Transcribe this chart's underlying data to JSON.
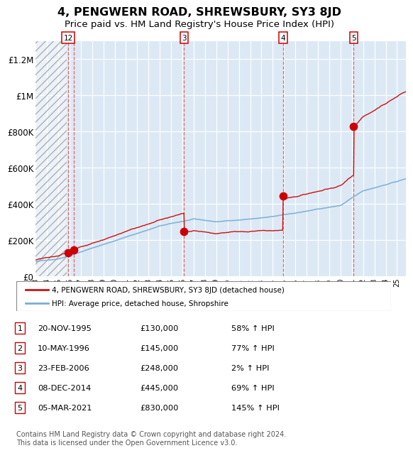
{
  "title": "4, PENGWERN ROAD, SHREWSBURY, SY3 8JD",
  "subtitle": "Price paid vs. HM Land Registry's House Price Index (HPI)",
  "title_fontsize": 11.5,
  "subtitle_fontsize": 9.5,
  "ylim": [
    0,
    1300000
  ],
  "yticks": [
    0,
    200000,
    400000,
    600000,
    800000,
    1000000,
    1200000
  ],
  "ytick_labels": [
    "£0",
    "£200K",
    "£400K",
    "£600K",
    "£800K",
    "£1M",
    "£1.2M"
  ],
  "xlim_start": 1993.0,
  "xlim_end": 2025.8,
  "xticks": [
    1993,
    1994,
    1995,
    1996,
    1997,
    1998,
    1999,
    2000,
    2001,
    2002,
    2003,
    2004,
    2005,
    2006,
    2007,
    2008,
    2009,
    2010,
    2011,
    2012,
    2013,
    2014,
    2015,
    2016,
    2017,
    2018,
    2019,
    2020,
    2021,
    2022,
    2023,
    2024,
    2025
  ],
  "background_color": "#dce9f5",
  "hatch_region_end": 1995.75,
  "grid_color": "#ffffff",
  "sale_dates_year": [
    1995.89,
    1996.36,
    2006.15,
    2014.92,
    2021.17
  ],
  "sale_prices": [
    130000,
    145000,
    248000,
    445000,
    830000
  ],
  "vline_color": "#e05050",
  "dot_color": "#cc0000",
  "dot_size": 55,
  "red_line_color": "#cc1111",
  "blue_line_color": "#7aadd4",
  "legend_red_label": "4, PENGWERN ROAD, SHREWSBURY, SY3 8JD (detached house)",
  "legend_blue_label": "HPI: Average price, detached house, Shropshire",
  "table_data": [
    {
      "num": "1",
      "date": "20-NOV-1995",
      "price": "£130,000",
      "hpi": "58% ↑ HPI"
    },
    {
      "num": "2",
      "date": "10-MAY-1996",
      "price": "£145,000",
      "hpi": "77% ↑ HPI"
    },
    {
      "num": "3",
      "date": "23-FEB-2006",
      "price": "£248,000",
      "hpi": "2% ↑ HPI"
    },
    {
      "num": "4",
      "date": "08-DEC-2014",
      "price": "£445,000",
      "hpi": "69% ↑ HPI"
    },
    {
      "num": "5",
      "date": "05-MAR-2021",
      "price": "£830,000",
      "hpi": "145% ↑ HPI"
    }
  ],
  "footer_text": "Contains HM Land Registry data © Crown copyright and database right 2024.\nThis data is licensed under the Open Government Licence v3.0.",
  "footer_fontsize": 7.0
}
